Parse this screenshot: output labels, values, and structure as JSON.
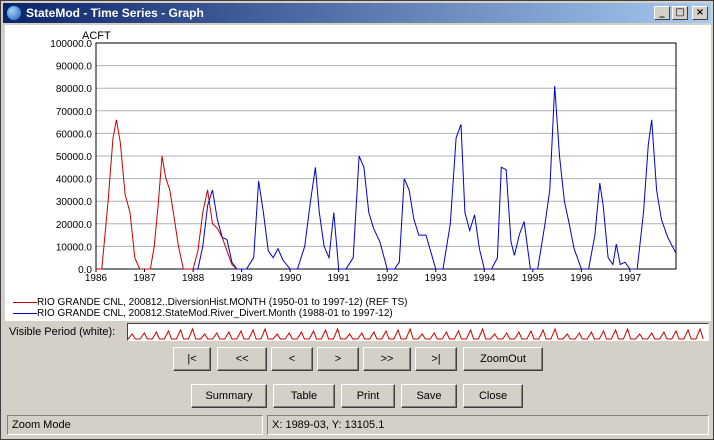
{
  "window": {
    "title": "StateMod - Time Series - Graph",
    "controls": {
      "minimize": "_",
      "maximize": "□",
      "close": "×"
    }
  },
  "chart_data": {
    "type": "line",
    "ylabel": "ACFT",
    "ylim": [
      0,
      100000
    ],
    "xlim": [
      1986,
      1997.95
    ],
    "y_ticks": [
      "0.0",
      "10000.0",
      "20000.0",
      "30000.0",
      "40000.0",
      "50000.0",
      "60000.0",
      "70000.0",
      "80000.0",
      "90000.0",
      "100000.0"
    ],
    "x_ticks": [
      "1986",
      "1987",
      "1988",
      "1989",
      "1990",
      "1991",
      "1992",
      "1993",
      "1994",
      "1995",
      "1996",
      "1997"
    ],
    "grid": "horizontal",
    "series": [
      {
        "name": "RIO GRANDE CNL, 200812..DiversionHist.MONTH (1950-01 to 1997-12) (REF TS)",
        "color": "#cc0000",
        "x": [
          1986.0,
          1986.12,
          1986.25,
          1986.35,
          1986.42,
          1986.5,
          1986.6,
          1986.7,
          1986.8,
          1986.9,
          1987.0,
          1987.12,
          1987.2,
          1987.28,
          1987.36,
          1987.44,
          1987.52,
          1987.6,
          1987.7,
          1987.8,
          1987.9,
          1988.0,
          1988.1,
          1988.2,
          1988.3,
          1988.4,
          1988.5,
          1988.6,
          1988.7,
          1988.8,
          1988.9,
          1989.0
        ],
        "y": [
          0,
          0,
          30000,
          58000,
          66000,
          56000,
          33000,
          25000,
          5000,
          0,
          0,
          0,
          10000,
          28000,
          50000,
          40000,
          35000,
          24000,
          10000,
          0,
          0,
          0,
          8000,
          25000,
          35000,
          20000,
          18000,
          14000,
          8000,
          2000,
          0,
          0
        ]
      },
      {
        "name": "RIO GRANDE CNL, 200812.StateMod.River_Divert.Month (1988-01 to 1997-12)",
        "color": "#0000cc",
        "x": [
          1988.0,
          1988.1,
          1988.2,
          1988.3,
          1988.4,
          1988.5,
          1988.6,
          1988.7,
          1988.8,
          1988.9,
          1989.0,
          1989.1,
          1989.25,
          1989.35,
          1989.45,
          1989.55,
          1989.65,
          1989.75,
          1989.85,
          1990.0,
          1990.15,
          1990.3,
          1990.42,
          1990.52,
          1990.6,
          1990.7,
          1990.8,
          1990.9,
          1991.0,
          1991.15,
          1991.3,
          1991.42,
          1991.52,
          1991.62,
          1991.72,
          1991.85,
          1992.0,
          1992.15,
          1992.25,
          1992.35,
          1992.45,
          1992.55,
          1992.65,
          1992.8,
          1993.0,
          1993.15,
          1993.3,
          1993.42,
          1993.52,
          1993.6,
          1993.7,
          1993.8,
          1993.9,
          1994.0,
          1994.15,
          1994.27,
          1994.35,
          1994.45,
          1994.55,
          1994.62,
          1994.72,
          1994.82,
          1994.95,
          1995.1,
          1995.25,
          1995.35,
          1995.45,
          1995.55,
          1995.65,
          1995.75,
          1995.85,
          1996.0,
          1996.15,
          1996.28,
          1996.38,
          1996.45,
          1996.55,
          1996.65,
          1996.72,
          1996.8,
          1996.9,
          1997.0,
          1997.15,
          1997.28,
          1997.38,
          1997.45,
          1997.55,
          1997.65,
          1997.78,
          1997.95
        ],
        "y": [
          0,
          0,
          10000,
          28000,
          35000,
          22000,
          14000,
          13000,
          3000,
          0,
          0,
          0,
          5000,
          39000,
          25000,
          8000,
          5000,
          9000,
          4000,
          0,
          0,
          10000,
          30000,
          45000,
          25000,
          10000,
          5000,
          25000,
          0,
          0,
          5000,
          50000,
          45000,
          25000,
          18000,
          12000,
          0,
          0,
          3000,
          40000,
          35000,
          22000,
          15000,
          15000,
          0,
          0,
          20000,
          58000,
          64000,
          25000,
          17000,
          24000,
          9000,
          0,
          0,
          5000,
          45000,
          44000,
          12000,
          6000,
          15000,
          21000,
          0,
          0,
          20000,
          35000,
          81000,
          50000,
          30000,
          20000,
          9000,
          0,
          0,
          15000,
          38000,
          28000,
          5000,
          2000,
          11000,
          2000,
          3000,
          0,
          0,
          25000,
          55000,
          66000,
          35000,
          22000,
          14000,
          7000
        ]
      }
    ]
  },
  "visible_period": {
    "label": "Visible Period (white):"
  },
  "nav_buttons": {
    "first": "|<",
    "back_page": "<<",
    "back": "<",
    "forward": ">",
    "forward_page": ">>",
    "last": ">|",
    "zoom_out": "ZoomOut"
  },
  "action_buttons": {
    "summary": "Summary",
    "table": "Table",
    "print": "Print",
    "save": "Save",
    "close": "Close"
  },
  "status": {
    "mode": "Zoom Mode",
    "coords": "X:  1989-03,  Y:  13105.1"
  }
}
